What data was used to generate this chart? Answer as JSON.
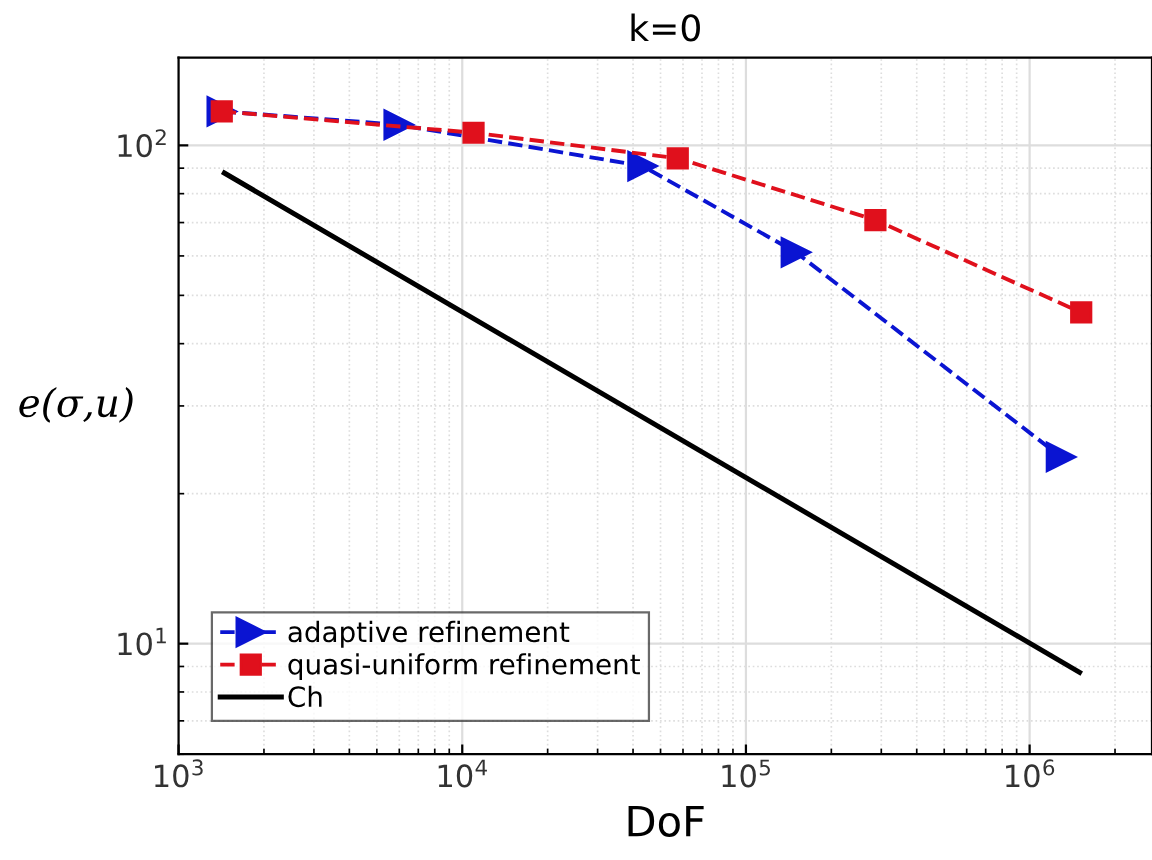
{
  "chart_data": {
    "type": "line",
    "title": "k=0",
    "xlabel": "DoF",
    "ylabel": "e(σ,u)",
    "log": "xy",
    "xlim": [
      1000,
      2700000
    ],
    "ylim": [
      6,
      150
    ],
    "xticks": [
      {
        "value": 1000,
        "label": "10$^{3}$"
      },
      {
        "value": 10000,
        "label": "10$^{4}$"
      },
      {
        "value": 100000,
        "label": "10$^{5}$"
      },
      {
        "value": 1000000,
        "label": "10$^{6}$"
      }
    ],
    "yticks": [
      {
        "value": 10,
        "label": "10$^{1}$"
      },
      {
        "value": 100,
        "label": "10$^{2}$"
      }
    ],
    "grid": true,
    "legend": "bottom left",
    "series": [
      {
        "name": "adaptive refinement",
        "color": "#0a14d2",
        "marker": "triangle",
        "line_style": "dashed",
        "x": [
          1420,
          5970,
          43200,
          150000,
          1290000
        ],
        "values": [
          117,
          110,
          90.9,
          61.0,
          23.7
        ]
      },
      {
        "name": "quasi-uniform refinement",
        "color": "#e0101c",
        "marker": "square",
        "line_style": "dashed",
        "x": [
          1420,
          10960,
          57500,
          286000,
          1520000
        ],
        "values": [
          117,
          106,
          94.2,
          70.8,
          46.2
        ]
      },
      {
        "name": "Ch",
        "color": "#000000",
        "marker": "none",
        "line_style": "solid",
        "x": [
          1450,
          1500000
        ],
        "values": [
          88.0,
          8.76
        ]
      }
    ]
  }
}
